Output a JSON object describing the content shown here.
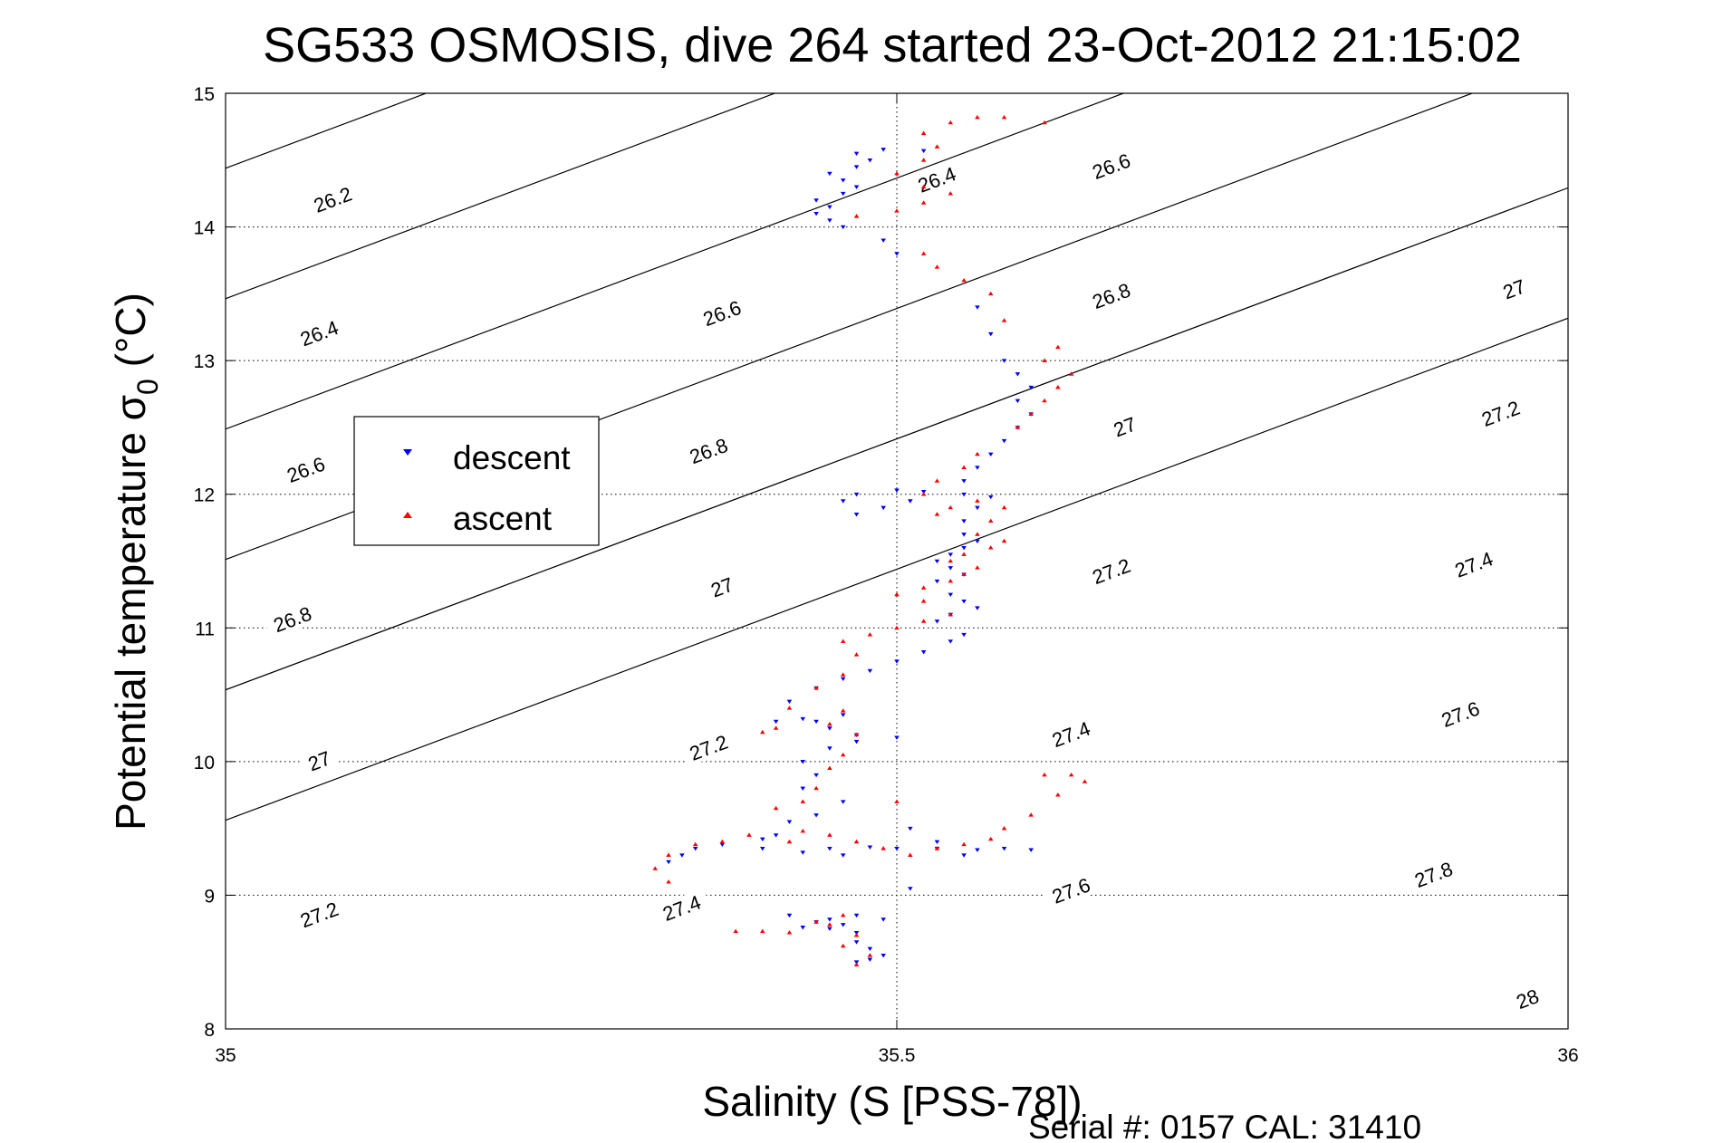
{
  "chart_data": {
    "type": "scatter",
    "title": "SG533 OSMOSIS, dive 264 started 23-Oct-2012 21:15:02",
    "xlabel": "Salinity (S [PSS-78])",
    "ylabel_main": "Potential temperature σ",
    "ylabel_sub": "0",
    "ylabel_unit": " (°C)",
    "footer": "Serial #: 0157  CAL: 31410",
    "xlim": [
      35,
      36
    ],
    "ylim": [
      8,
      15
    ],
    "xticks": [
      "35",
      "35.5",
      "36"
    ],
    "yticks": [
      "8",
      "9",
      "10",
      "11",
      "12",
      "13",
      "14",
      "15"
    ],
    "grid": "dotted at x=35.5 and every y tick",
    "legend_position": "upper-left",
    "contours": {
      "quantity": "sigma_0 isopycnals",
      "levels": [
        26.2,
        26.4,
        26.6,
        26.8,
        27.0,
        27.2,
        27.4,
        27.6,
        27.8,
        28.0
      ],
      "labels": [
        {
          "text": "26.2",
          "x": 35.08,
          "y": 14.2
        },
        {
          "text": "26.4",
          "x": 35.53,
          "y": 14.35
        },
        {
          "text": "26.4",
          "x": 35.07,
          "y": 13.2
        },
        {
          "text": "26.6",
          "x": 35.66,
          "y": 14.45
        },
        {
          "text": "26.6",
          "x": 35.37,
          "y": 13.35
        },
        {
          "text": "26.6",
          "x": 35.06,
          "y": 12.18
        },
        {
          "text": "26.8",
          "x": 35.66,
          "y": 13.48
        },
        {
          "text": "26.8",
          "x": 35.36,
          "y": 12.32
        },
        {
          "text": "26.8",
          "x": 35.05,
          "y": 11.06
        },
        {
          "text": "27",
          "x": 35.96,
          "y": 13.53
        },
        {
          "text": "27",
          "x": 35.67,
          "y": 12.5
        },
        {
          "text": "27",
          "x": 35.37,
          "y": 11.3
        },
        {
          "text": "27",
          "x": 35.07,
          "y": 10.0
        },
        {
          "text": "27.2",
          "x": 35.95,
          "y": 12.6
        },
        {
          "text": "27.2",
          "x": 35.66,
          "y": 11.42
        },
        {
          "text": "27.2",
          "x": 35.36,
          "y": 10.1
        },
        {
          "text": "27.2",
          "x": 35.07,
          "y": 8.85
        },
        {
          "text": "27.4",
          "x": 35.93,
          "y": 11.47
        },
        {
          "text": "27.4",
          "x": 35.63,
          "y": 10.2
        },
        {
          "text": "27.4",
          "x": 35.34,
          "y": 8.9
        },
        {
          "text": "27.6",
          "x": 35.92,
          "y": 10.35
        },
        {
          "text": "27.6",
          "x": 35.63,
          "y": 9.03
        },
        {
          "text": "27.8",
          "x": 35.9,
          "y": 9.15
        },
        {
          "text": "28",
          "x": 35.97,
          "y": 8.22
        }
      ]
    },
    "series": [
      {
        "name": "descent",
        "color": "#0000ff",
        "marker": "triangle-down",
        "points": [
          [
            35.47,
            8.5
          ],
          [
            35.48,
            8.52
          ],
          [
            35.49,
            8.55
          ],
          [
            35.48,
            8.6
          ],
          [
            35.47,
            8.65
          ],
          [
            35.47,
            8.72
          ],
          [
            35.46,
            8.78
          ],
          [
            35.45,
            8.82
          ],
          [
            35.47,
            8.85
          ],
          [
            35.49,
            8.82
          ],
          [
            35.45,
            8.75
          ],
          [
            35.43,
            8.76
          ],
          [
            35.44,
            8.8
          ],
          [
            35.42,
            8.85
          ],
          [
            35.33,
            9.25
          ],
          [
            35.34,
            9.3
          ],
          [
            35.35,
            9.35
          ],
          [
            35.37,
            9.38
          ],
          [
            35.4,
            9.42
          ],
          [
            35.41,
            9.45
          ],
          [
            35.4,
            9.35
          ],
          [
            35.43,
            9.32
          ],
          [
            35.46,
            9.3
          ],
          [
            35.45,
            9.35
          ],
          [
            35.48,
            9.36
          ],
          [
            35.5,
            9.35
          ],
          [
            35.53,
            9.35
          ],
          [
            35.56,
            9.34
          ],
          [
            35.58,
            9.35
          ],
          [
            35.6,
            9.34
          ],
          [
            35.55,
            9.3
          ],
          [
            35.51,
            9.5
          ],
          [
            35.53,
            9.4
          ],
          [
            35.51,
            9.05
          ],
          [
            35.42,
            9.55
          ],
          [
            35.44,
            9.6
          ],
          [
            35.46,
            9.7
          ],
          [
            35.43,
            9.8
          ],
          [
            35.44,
            9.9
          ],
          [
            35.43,
            10.0
          ],
          [
            35.45,
            10.1
          ],
          [
            35.47,
            10.15
          ],
          [
            35.5,
            10.18
          ],
          [
            35.47,
            10.2
          ],
          [
            35.45,
            10.25
          ],
          [
            35.44,
            10.3
          ],
          [
            35.43,
            10.32
          ],
          [
            35.46,
            10.35
          ],
          [
            35.41,
            10.3
          ],
          [
            35.42,
            10.45
          ],
          [
            35.44,
            10.55
          ],
          [
            35.46,
            10.62
          ],
          [
            35.48,
            10.68
          ],
          [
            35.5,
            10.75
          ],
          [
            35.52,
            10.82
          ],
          [
            35.54,
            10.9
          ],
          [
            35.55,
            10.95
          ],
          [
            35.53,
            11.05
          ],
          [
            35.54,
            11.1
          ],
          [
            35.56,
            11.15
          ],
          [
            35.55,
            11.2
          ],
          [
            35.54,
            11.25
          ],
          [
            35.53,
            11.35
          ],
          [
            35.55,
            11.4
          ],
          [
            35.54,
            11.45
          ],
          [
            35.53,
            11.5
          ],
          [
            35.54,
            11.55
          ],
          [
            35.55,
            11.6
          ],
          [
            35.56,
            11.65
          ],
          [
            35.55,
            11.7
          ],
          [
            35.55,
            11.8
          ],
          [
            35.56,
            11.9
          ],
          [
            35.57,
            11.98
          ],
          [
            35.55,
            12.0
          ],
          [
            35.52,
            12.02
          ],
          [
            35.5,
            12.03
          ],
          [
            35.47,
            12.0
          ],
          [
            35.46,
            11.95
          ],
          [
            35.47,
            11.85
          ],
          [
            35.49,
            11.9
          ],
          [
            35.51,
            11.95
          ],
          [
            35.55,
            12.1
          ],
          [
            35.56,
            12.2
          ],
          [
            35.57,
            12.3
          ],
          [
            35.58,
            12.4
          ],
          [
            35.59,
            12.5
          ],
          [
            35.6,
            12.6
          ],
          [
            35.59,
            12.7
          ],
          [
            35.6,
            12.8
          ],
          [
            35.59,
            12.9
          ],
          [
            35.58,
            13.0
          ],
          [
            35.57,
            13.2
          ],
          [
            35.56,
            13.4
          ],
          [
            35.5,
            13.8
          ],
          [
            35.49,
            13.9
          ],
          [
            35.46,
            14.0
          ],
          [
            35.45,
            14.05
          ],
          [
            35.44,
            14.1
          ],
          [
            35.45,
            14.15
          ],
          [
            35.44,
            14.2
          ],
          [
            35.46,
            14.25
          ],
          [
            35.47,
            14.3
          ],
          [
            35.46,
            14.35
          ],
          [
            35.45,
            14.4
          ],
          [
            35.47,
            14.45
          ],
          [
            35.48,
            14.5
          ],
          [
            35.47,
            14.55
          ],
          [
            35.49,
            14.58
          ],
          [
            35.52,
            14.57
          ]
        ]
      },
      {
        "name": "ascent",
        "color": "#ff0000",
        "marker": "triangle-up",
        "points": [
          [
            35.47,
            8.48
          ],
          [
            35.48,
            8.55
          ],
          [
            35.46,
            8.62
          ],
          [
            35.47,
            8.7
          ],
          [
            35.45,
            8.78
          ],
          [
            35.46,
            8.85
          ],
          [
            35.44,
            8.8
          ],
          [
            35.42,
            8.72
          ],
          [
            35.4,
            8.73
          ],
          [
            35.38,
            8.73
          ],
          [
            35.33,
            9.1
          ],
          [
            35.32,
            9.2
          ],
          [
            35.33,
            9.3
          ],
          [
            35.35,
            9.38
          ],
          [
            35.37,
            9.4
          ],
          [
            35.39,
            9.45
          ],
          [
            35.42,
            9.4
          ],
          [
            35.43,
            9.48
          ],
          [
            35.45,
            9.45
          ],
          [
            35.47,
            9.4
          ],
          [
            35.49,
            9.35
          ],
          [
            35.51,
            9.3
          ],
          [
            35.53,
            9.35
          ],
          [
            35.55,
            9.38
          ],
          [
            35.57,
            9.42
          ],
          [
            35.58,
            9.5
          ],
          [
            35.6,
            9.6
          ],
          [
            35.62,
            9.75
          ],
          [
            35.64,
            9.85
          ],
          [
            35.63,
            9.9
          ],
          [
            35.61,
            9.9
          ],
          [
            35.5,
            9.7
          ],
          [
            35.41,
            9.65
          ],
          [
            35.43,
            9.7
          ],
          [
            35.44,
            9.8
          ],
          [
            35.45,
            9.95
          ],
          [
            35.46,
            10.05
          ],
          [
            35.47,
            10.2
          ],
          [
            35.45,
            10.28
          ],
          [
            35.46,
            10.38
          ],
          [
            35.41,
            10.25
          ],
          [
            35.4,
            10.22
          ],
          [
            35.42,
            10.4
          ],
          [
            35.44,
            10.55
          ],
          [
            35.46,
            10.65
          ],
          [
            35.47,
            10.8
          ],
          [
            35.46,
            10.9
          ],
          [
            35.48,
            10.95
          ],
          [
            35.5,
            11.0
          ],
          [
            35.52,
            11.05
          ],
          [
            35.54,
            11.1
          ],
          [
            35.52,
            11.2
          ],
          [
            35.5,
            11.25
          ],
          [
            35.52,
            11.3
          ],
          [
            35.54,
            11.35
          ],
          [
            35.55,
            11.4
          ],
          [
            35.56,
            11.45
          ],
          [
            35.54,
            11.5
          ],
          [
            35.55,
            11.55
          ],
          [
            35.57,
            11.6
          ],
          [
            35.58,
            11.65
          ],
          [
            35.56,
            11.7
          ],
          [
            35.57,
            11.8
          ],
          [
            35.58,
            11.9
          ],
          [
            35.56,
            11.95
          ],
          [
            35.54,
            11.9
          ],
          [
            35.53,
            11.85
          ],
          [
            35.52,
            12.0
          ],
          [
            35.53,
            12.1
          ],
          [
            35.55,
            12.2
          ],
          [
            35.56,
            12.3
          ],
          [
            35.59,
            12.5
          ],
          [
            35.6,
            12.6
          ],
          [
            35.61,
            12.7
          ],
          [
            35.62,
            12.8
          ],
          [
            35.63,
            12.9
          ],
          [
            35.61,
            13.0
          ],
          [
            35.62,
            13.1
          ],
          [
            35.58,
            13.3
          ],
          [
            35.57,
            13.5
          ],
          [
            35.55,
            13.6
          ],
          [
            35.53,
            13.7
          ],
          [
            35.52,
            13.8
          ],
          [
            35.47,
            14.08
          ],
          [
            35.5,
            14.12
          ],
          [
            35.52,
            14.18
          ],
          [
            35.54,
            14.25
          ],
          [
            35.52,
            14.3
          ],
          [
            35.5,
            14.4
          ],
          [
            35.52,
            14.5
          ],
          [
            35.53,
            14.6
          ],
          [
            35.52,
            14.7
          ],
          [
            35.54,
            14.78
          ],
          [
            35.56,
            14.82
          ],
          [
            35.58,
            14.82
          ],
          [
            35.61,
            14.78
          ]
        ]
      }
    ]
  }
}
